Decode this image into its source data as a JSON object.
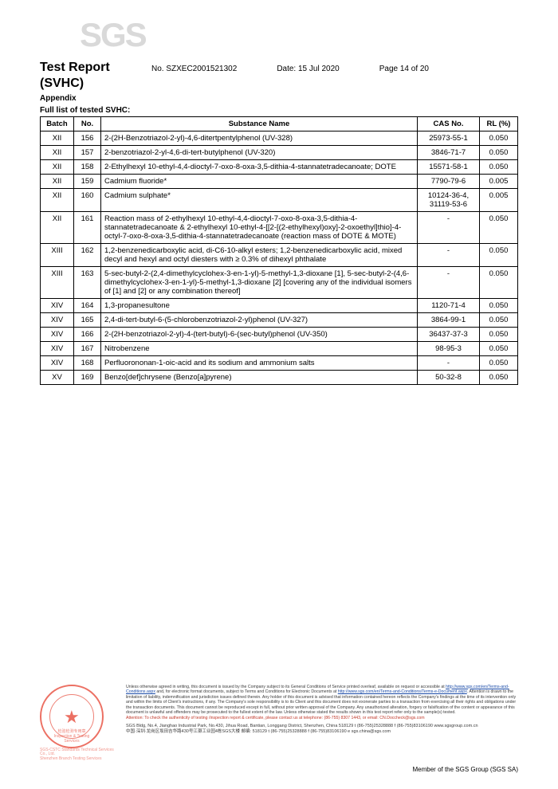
{
  "logo": "SGS",
  "header": {
    "title": "Test Report",
    "subtitle": "(SVHC)",
    "report_no_label": "No.",
    "report_no": "SZXEC2001521302",
    "date_label": "Date:",
    "date": "15 Jul 2020",
    "page": "Page 14 of 20"
  },
  "section": {
    "appendix": "Appendix",
    "full_list": "Full list of tested SVHC:"
  },
  "table": {
    "headers": {
      "batch": "Batch",
      "no": "No.",
      "substance": "Substance Name",
      "cas": "CAS No.",
      "rl": "RL (%)"
    },
    "rows": [
      {
        "batch": "XII",
        "no": "156",
        "sub": "2-(2H-Benzotriazol-2-yl)-4,6-ditertpentylphenol (UV-328)",
        "cas": "25973-55-1",
        "rl": "0.050"
      },
      {
        "batch": "XII",
        "no": "157",
        "sub": "2-benzotriazol-2-yl-4,6-di-tert-butylphenol (UV-320)",
        "cas": "3846-71-7",
        "rl": "0.050"
      },
      {
        "batch": "XII",
        "no": "158",
        "sub": "2-Ethylhexyl 10-ethyl-4,4-dioctyl-7-oxo-8-oxa-3,5-dithia-4-stannatetradecanoate; DOTE",
        "cas": "15571-58-1",
        "rl": "0.050"
      },
      {
        "batch": "XII",
        "no": "159",
        "sub": "Cadmium fluoride*",
        "cas": "7790-79-6",
        "rl": "0.005"
      },
      {
        "batch": "XII",
        "no": "160",
        "sub": "Cadmium sulphate*",
        "cas": "10124-36-4, 31119-53-6",
        "rl": "0.005"
      },
      {
        "batch": "XII",
        "no": "161",
        "sub": "Reaction mass of 2-ethylhexyl 10-ethyl-4,4-dioctyl-7-oxo-8-oxa-3,5-dithia-4-stannatetradecanoate & 2-ethylhexyl 10-ethyl-4-[[2-[(2-ethylhexyl)oxy]-2-oxoethyl]thio]-4-octyl-7-oxo-8-oxa-3,5-dithia-4-stannatetradecanoate (reaction mass of DOTE & MOTE)",
        "cas": "-",
        "rl": "0.050"
      },
      {
        "batch": "XIII",
        "no": "162",
        "sub": "1,2-benzenedicarboxylic acid, di-C6-10-alkyl esters; 1,2-benzenedicarboxylic acid, mixed decyl and hexyl and octyl diesters with ≥ 0.3% of dihexyl phthalate",
        "cas": "-",
        "rl": "0.050"
      },
      {
        "batch": "XIII",
        "no": "163",
        "sub": "5-sec-butyl-2-(2,4-dimethylcyclohex-3-en-1-yl)-5-methyl-1,3-dioxane [1], 5-sec-butyl-2-(4,6-dimethylcyclohex-3-en-1-yl)-5-methyl-1,3-dioxane [2] [covering any of the individual isomers of [1] and [2] or any combination thereof]",
        "cas": "-",
        "rl": "0.050"
      },
      {
        "batch": "XIV",
        "no": "164",
        "sub": "1,3-propanesultone",
        "cas": "1120-71-4",
        "rl": "0.050"
      },
      {
        "batch": "XIV",
        "no": "165",
        "sub": "2,4-di-tert-butyl-6-(5-chlorobenzotriazol-2-yl)phenol (UV-327)",
        "cas": "3864-99-1",
        "rl": "0.050"
      },
      {
        "batch": "XIV",
        "no": "166",
        "sub": "2-(2H-benzotriazol-2-yl)-4-(tert-butyl)-6-(sec-butyl)phenol (UV-350)",
        "cas": "36437-37-3",
        "rl": "0.050"
      },
      {
        "batch": "XIV",
        "no": "167",
        "sub": "Nitrobenzene",
        "cas": "98-95-3",
        "rl": "0.050"
      },
      {
        "batch": "XIV",
        "no": "168",
        "sub": "Perfluorononan-1-oic-acid and its sodium and ammonium salts",
        "cas": "-",
        "rl": "0.050"
      },
      {
        "batch": "XV",
        "no": "169",
        "sub": "Benzo[def]chrysene (Benzo[a]pyrene)",
        "cas": "50-32-8",
        "rl": "0.050"
      }
    ]
  },
  "footer": {
    "disclaimer_1": "Unless otherwise agreed in writing, this document is issued by the Company subject to its General Conditions of Service printed overleaf, available on request or accessible at ",
    "link1": "http://www.sgs.com/en/Terms-and-Conditions.aspx",
    "disclaimer_2": " and, for electronic format documents, subject to Terms and Conditions for Electronic Documents at ",
    "link2": "http://www.sgs.com/en/Terms-and-Conditions/Terms-e-Document.aspx",
    "disclaimer_3": ". Attention is drawn to the limitation of liability, indemnification and jurisdiction issues defined therein. Any holder of this document is advised that information contained hereon reflects the Company's findings at the time of its intervention only and within the limits of Client's instructions, if any. The Company's sole responsibility is to its Client and this document does not exonerate parties to a transaction from exercising all their rights and obligations under the transaction documents. This document cannot be reproduced except in full, without prior written approval of the Company. Any unauthorized alteration, forgery or falsification of the content or appearance of this document is unlawful and offenders may be prosecuted to the fullest extent of the law. Unless otherwise stated the results shown in this test report refer only to the sample(s) tested.",
    "attention": "Attention: To check the authenticity of testing /inspection report & certificate, please contact us at telephone: (86-755) 8307 1443, or email: CN.Doccheck@sgs.com",
    "addr1": "SGS Bldg, No.4, Jianghao Industrial Park, No.430, Jihua Road, Bantian, Longgang District, Shenzhen, China 518129    t (86-755)25328888   f (86-755)83106190   www.sgsgroup.com.cn",
    "addr2": "中国·深圳·龙岗区坂田吉华路430号江灏工业园4栋SGS大楼    邮编: 518129    t (86-755)25328888   f (86-755)83106190   e sgs.china@sgs.com",
    "stamp_caption1": "SGS-CSTC Standards Technical Services Co., Ltd.",
    "stamp_caption2": "Shenzhen Branch Testing Services",
    "stamp_mid": "检验检测专用章",
    "stamp_sub": "Inspection & Testing Services",
    "member": "Member of the SGS Group (SGS SA)"
  }
}
